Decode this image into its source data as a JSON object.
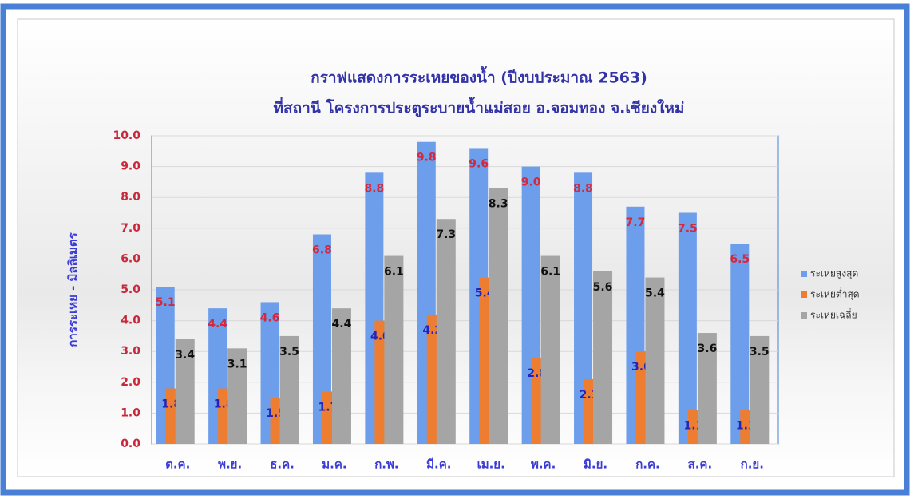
{
  "chart_data": {
    "type": "bar",
    "title": "กราฟแสดงการระเหยของน้ำ (ปีงบประมาณ 2563)",
    "subtitle": "ที่สถานี โครงการประตูระบายน้ำแม่สอย อ.จอมทอง จ.เชียงใหม่",
    "y_label": "การระเหย - มิลลิเมตร",
    "categories": [
      "ต.ค.",
      "พ.ย.",
      "ธ.ค.",
      "ม.ค.",
      "ก.พ.",
      "มี.ค.",
      "เม.ย.",
      "พ.ค.",
      "มิ.ย.",
      "ก.ค.",
      "ส.ค.",
      "ก.ย."
    ],
    "series": [
      {
        "name": "ระเหยสูงสุด",
        "color": "#6d9eeb",
        "values": [
          5.1,
          4.4,
          4.6,
          6.8,
          8.8,
          9.8,
          9.6,
          9.0,
          8.8,
          7.7,
          7.5,
          6.5
        ],
        "value_labels": [
          "5.1",
          "4.4",
          "4.6",
          "6.8",
          "8.8",
          "9.8",
          "9.6",
          "9.0",
          "8.8",
          "7.7",
          "7.5",
          "6.5"
        ]
      },
      {
        "name": "ระเหยต่ำสุด",
        "color": "#ed7d31",
        "values": [
          1.8,
          1.8,
          1.5,
          1.7,
          4.0,
          4.2,
          5.4,
          2.8,
          2.1,
          3.0,
          1.1,
          1.1
        ],
        "value_labels": [
          "1.8",
          "1.8",
          "1.5",
          "1.7",
          "4.0",
          "4.2",
          "5.4",
          "2.8",
          "2.1",
          "3.0",
          "1.1",
          "1.1"
        ]
      },
      {
        "name": "ระเหยเฉลี่ย",
        "color": "#a5a5a5",
        "values": [
          3.4,
          3.1,
          3.5,
          4.4,
          6.1,
          7.3,
          8.3,
          6.1,
          5.6,
          5.4,
          3.6,
          3.5
        ],
        "value_labels": [
          "3.4",
          "3.1",
          "3.5",
          "4.4",
          "6.1",
          "7.3",
          "8.3",
          "6.1",
          "5.6",
          "5.4",
          "3.6",
          "3.5"
        ]
      }
    ],
    "ylim": [
      0,
      10
    ],
    "yticks": [
      {
        "value": 0,
        "label": "0.0"
      },
      {
        "value": 1,
        "label": "1.0"
      },
      {
        "value": 2,
        "label": "2.0"
      },
      {
        "value": 3,
        "label": "3.0"
      },
      {
        "value": 4,
        "label": "4.0"
      },
      {
        "value": 5,
        "label": "5.0"
      },
      {
        "value": 6,
        "label": "6.0"
      },
      {
        "value": 7,
        "label": "7.0"
      },
      {
        "value": 8,
        "label": "8.0"
      },
      {
        "value": 9,
        "label": "9.0"
      },
      {
        "value": 10,
        "label": "10.0"
      }
    ],
    "grid": true,
    "legend": "right"
  }
}
